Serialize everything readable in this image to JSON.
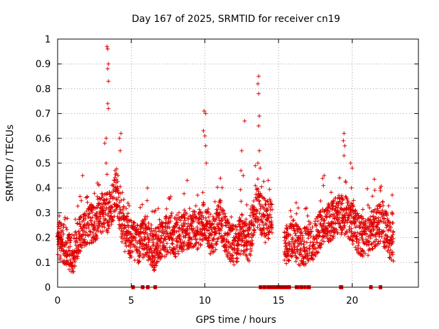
{
  "chart_data": {
    "type": "scatter",
    "title": "Day 167 of 2025, SRMTID for receiver cn19",
    "xlabel": "GPS time / hours",
    "ylabel": "SRMTID / TECUs",
    "xlim": [
      0,
      24.5
    ],
    "ylim": [
      0,
      1
    ],
    "xticks": [
      "0",
      "5",
      "10",
      "15",
      "20"
    ],
    "xtick_values": [
      0,
      5,
      10,
      15,
      20
    ],
    "yticks": [
      "0",
      "0.1",
      "0.2",
      "0.3",
      "0.4",
      "0.5",
      "0.6",
      "0.7",
      "0.8",
      "0.9",
      "1"
    ],
    "ytick_values": [
      0,
      0.1,
      0.2,
      0.3,
      0.4,
      0.5,
      0.6,
      0.7,
      0.8,
      0.9,
      1
    ],
    "grid": true,
    "marker": "+",
    "color": "#e00000",
    "profile": [
      {
        "x": 0.0,
        "y": 0.19
      },
      {
        "x": 0.5,
        "y": 0.17
      },
      {
        "x": 1.0,
        "y": 0.13
      },
      {
        "x": 1.5,
        "y": 0.21
      },
      {
        "x": 2.0,
        "y": 0.25
      },
      {
        "x": 2.5,
        "y": 0.26
      },
      {
        "x": 3.0,
        "y": 0.3
      },
      {
        "x": 3.5,
        "y": 0.3
      },
      {
        "x": 4.0,
        "y": 0.38
      },
      {
        "x": 4.5,
        "y": 0.22
      },
      {
        "x": 5.0,
        "y": 0.19
      },
      {
        "x": 5.5,
        "y": 0.17
      },
      {
        "x": 6.0,
        "y": 0.21
      },
      {
        "x": 6.5,
        "y": 0.14
      },
      {
        "x": 7.0,
        "y": 0.18
      },
      {
        "x": 7.5,
        "y": 0.22
      },
      {
        "x": 8.0,
        "y": 0.2
      },
      {
        "x": 8.5,
        "y": 0.22
      },
      {
        "x": 9.0,
        "y": 0.24
      },
      {
        "x": 9.5,
        "y": 0.23
      },
      {
        "x": 10.0,
        "y": 0.27
      },
      {
        "x": 10.5,
        "y": 0.18
      },
      {
        "x": 11.0,
        "y": 0.28
      },
      {
        "x": 11.5,
        "y": 0.2
      },
      {
        "x": 12.0,
        "y": 0.16
      },
      {
        "x": 12.5,
        "y": 0.22
      },
      {
        "x": 13.0,
        "y": 0.18
      },
      {
        "x": 13.5,
        "y": 0.32
      },
      {
        "x": 14.0,
        "y": 0.28
      },
      {
        "x": 14.5,
        "y": 0.27
      },
      {
        "x": 15.5,
        "y": 0.17
      },
      {
        "x": 16.0,
        "y": 0.2
      },
      {
        "x": 16.5,
        "y": 0.15
      },
      {
        "x": 17.0,
        "y": 0.17
      },
      {
        "x": 17.5,
        "y": 0.2
      },
      {
        "x": 18.0,
        "y": 0.25
      },
      {
        "x": 18.5,
        "y": 0.26
      },
      {
        "x": 19.0,
        "y": 0.29
      },
      {
        "x": 19.5,
        "y": 0.29
      },
      {
        "x": 20.0,
        "y": 0.26
      },
      {
        "x": 20.5,
        "y": 0.2
      },
      {
        "x": 21.0,
        "y": 0.2
      },
      {
        "x": 21.5,
        "y": 0.24
      },
      {
        "x": 22.0,
        "y": 0.26
      },
      {
        "x": 22.5,
        "y": 0.2
      },
      {
        "x": 22.8,
        "y": 0.18
      }
    ],
    "gaps": [
      [
        14.6,
        15.4
      ]
    ],
    "peaks": [
      {
        "x": 3.35,
        "y": 0.97
      },
      {
        "x": 3.4,
        "y": 0.96
      },
      {
        "x": 3.45,
        "y": 0.9
      },
      {
        "x": 3.4,
        "y": 0.88
      },
      {
        "x": 3.45,
        "y": 0.83
      },
      {
        "x": 3.4,
        "y": 0.74
      },
      {
        "x": 3.45,
        "y": 0.72
      },
      {
        "x": 3.3,
        "y": 0.6
      },
      {
        "x": 3.2,
        "y": 0.58
      },
      {
        "x": 3.3,
        "y": 0.5
      },
      {
        "x": 4.3,
        "y": 0.62
      },
      {
        "x": 4.2,
        "y": 0.6
      },
      {
        "x": 4.25,
        "y": 0.55
      },
      {
        "x": 3.9,
        "y": 0.47
      },
      {
        "x": 4.1,
        "y": 0.45
      },
      {
        "x": 9.95,
        "y": 0.71
      },
      {
        "x": 10.05,
        "y": 0.7
      },
      {
        "x": 9.9,
        "y": 0.63
      },
      {
        "x": 10.0,
        "y": 0.61
      },
      {
        "x": 10.05,
        "y": 0.57
      },
      {
        "x": 10.1,
        "y": 0.5
      },
      {
        "x": 12.7,
        "y": 0.67
      },
      {
        "x": 12.5,
        "y": 0.55
      },
      {
        "x": 12.45,
        "y": 0.47
      },
      {
        "x": 12.6,
        "y": 0.45
      },
      {
        "x": 13.65,
        "y": 0.85
      },
      {
        "x": 13.6,
        "y": 0.82
      },
      {
        "x": 13.65,
        "y": 0.78
      },
      {
        "x": 13.7,
        "y": 0.69
      },
      {
        "x": 13.65,
        "y": 0.65
      },
      {
        "x": 13.7,
        "y": 0.55
      },
      {
        "x": 13.6,
        "y": 0.5
      },
      {
        "x": 13.75,
        "y": 0.48
      },
      {
        "x": 14.3,
        "y": 0.43
      },
      {
        "x": 16.2,
        "y": 0.34
      },
      {
        "x": 19.45,
        "y": 0.62
      },
      {
        "x": 19.4,
        "y": 0.59
      },
      {
        "x": 19.5,
        "y": 0.57
      },
      {
        "x": 19.45,
        "y": 0.53
      },
      {
        "x": 19.9,
        "y": 0.5
      },
      {
        "x": 20.0,
        "y": 0.48
      },
      {
        "x": 18.1,
        "y": 0.45
      },
      {
        "x": 21.9,
        "y": 0.4
      },
      {
        "x": 6.1,
        "y": 0.4
      },
      {
        "x": 2.7,
        "y": 0.42
      },
      {
        "x": 1.7,
        "y": 0.45
      },
      {
        "x": 8.8,
        "y": 0.43
      }
    ],
    "zero_points": [
      5.1,
      5.15,
      5.75,
      5.8,
      6.1,
      6.15,
      6.6,
      6.65,
      13.75,
      13.8,
      14.0,
      14.1,
      14.3,
      14.4,
      14.5,
      14.6,
      14.7,
      14.8,
      14.9,
      15.0,
      15.1,
      15.2,
      15.35,
      15.5,
      15.6,
      15.75,
      16.2,
      16.3,
      16.5,
      16.6,
      16.8,
      17.0,
      17.1,
      19.2,
      19.25,
      19.3,
      21.25,
      21.3,
      21.9,
      21.95
    ]
  }
}
